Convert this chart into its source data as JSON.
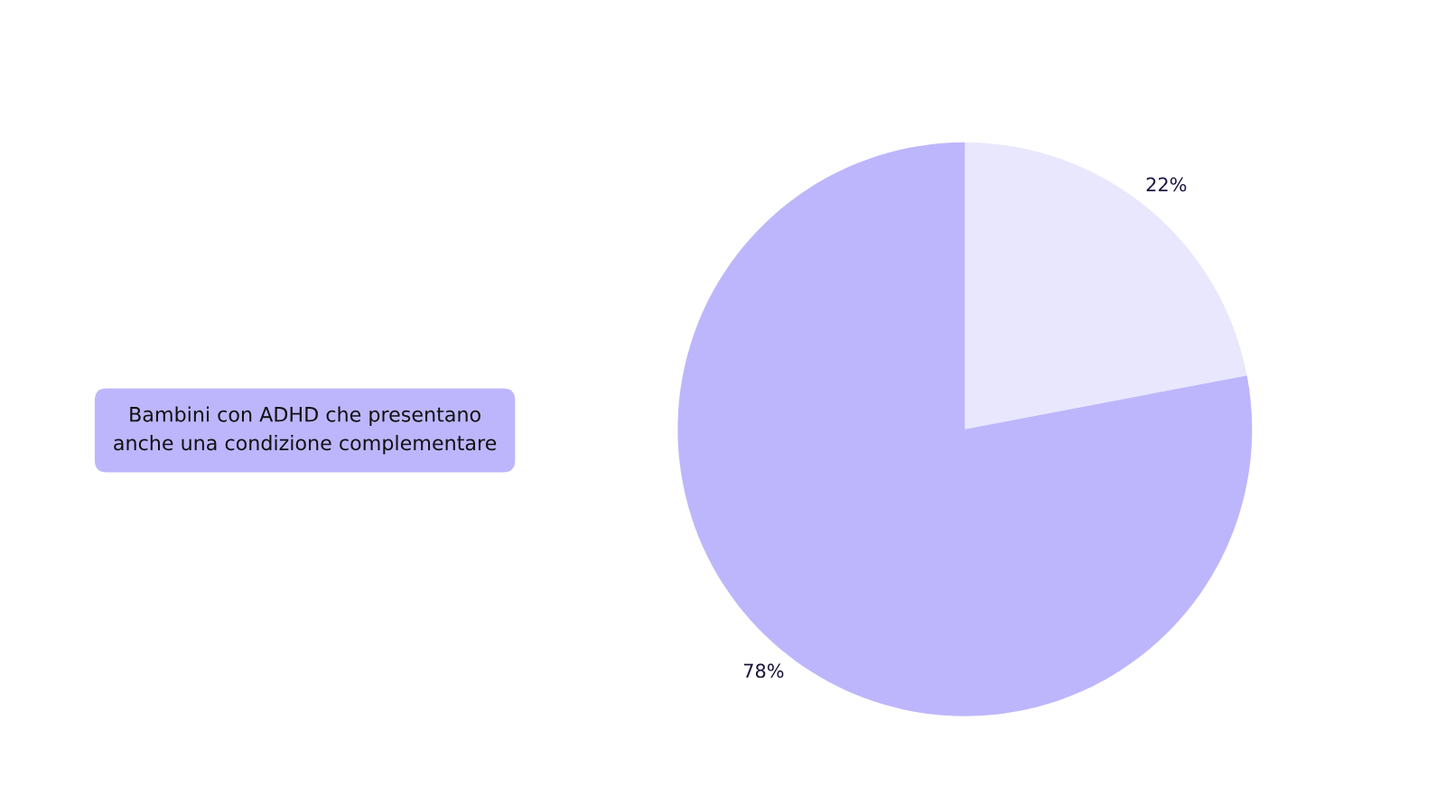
{
  "chart_data": {
    "type": "pie",
    "categories": [
      null,
      "Bambini con ADHD che presentano\nanche una condizione complementare"
    ],
    "values": [
      22,
      78
    ],
    "colors": [
      "#e9e7fd",
      "#bdb6fc"
    ],
    "value_labels": [
      "22%",
      "78%"
    ]
  }
}
